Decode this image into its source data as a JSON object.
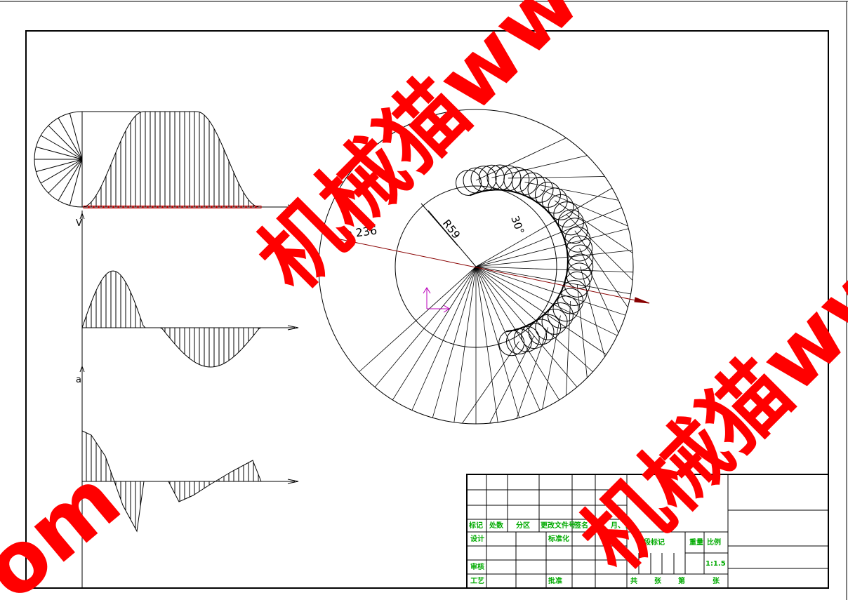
{
  "labels": {
    "velocity": "V",
    "acceleration": "a",
    "outer_diameter": "Φ 236",
    "base_radius": "R59",
    "angle": "30°"
  },
  "title_block": {
    "header": [
      "标记",
      "处数",
      "分区",
      "更改文件号",
      "签名",
      "年、月、日"
    ],
    "design": "设计",
    "standardization": "标准化",
    "stage_mark": "阶段标记",
    "weight": "重量",
    "scale": "比例",
    "scale_value": "1:1.5",
    "review": "审核",
    "process": "工艺",
    "approve": "批准",
    "sheets": [
      "共",
      "张",
      "第",
      "张"
    ]
  },
  "watermarks": [
    "机械猫www",
    "机械猫ww",
    "om"
  ]
}
